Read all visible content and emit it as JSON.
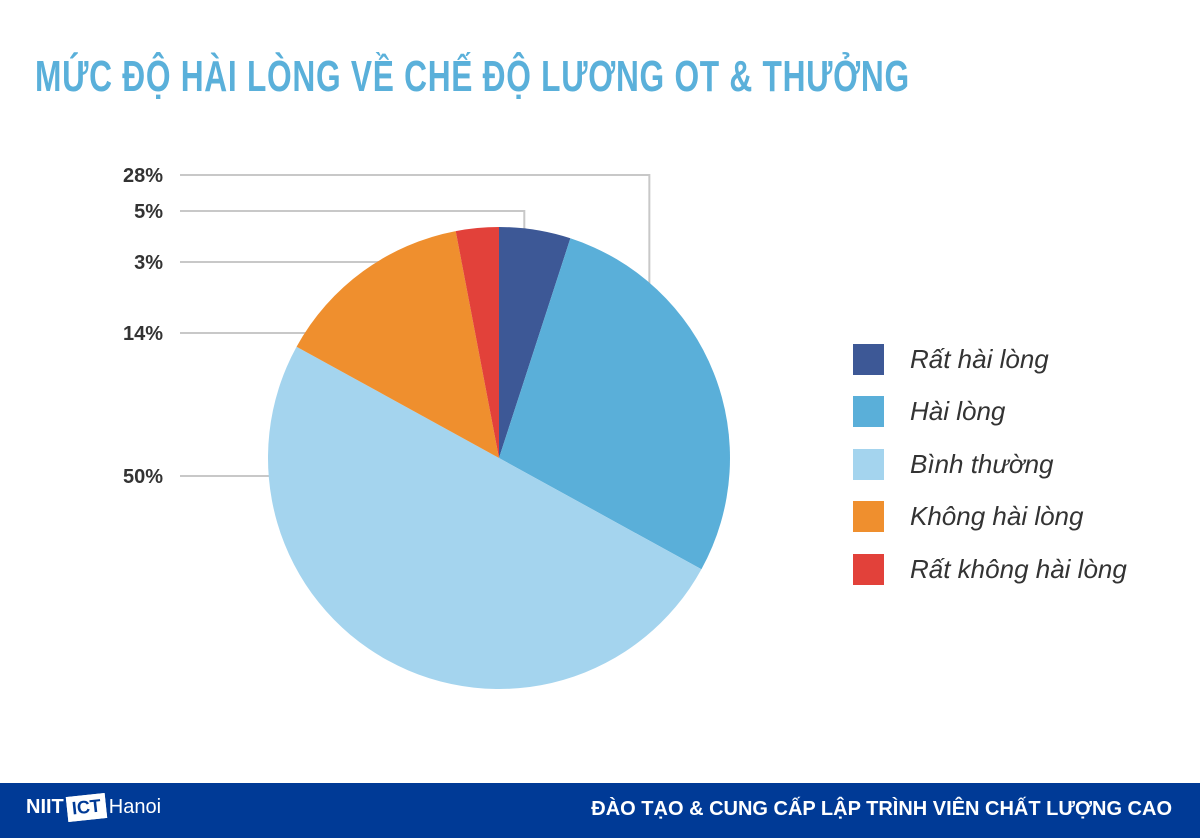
{
  "chart_data": {
    "type": "pie",
    "title": "MỨC ĐỘ HÀI LÒNG VỀ CHẾ ĐỘ LƯƠNG OT & THƯỞNG",
    "slices": [
      {
        "label": "Rất hài lòng",
        "value": 5,
        "display": "5%",
        "color": "#3d5896"
      },
      {
        "label": "Hài lòng",
        "value": 28,
        "display": "28%",
        "color": "#5aafd9"
      },
      {
        "label": "Bình thường",
        "value": 50,
        "display": "50%",
        "color": "#a4d4ee"
      },
      {
        "label": "Không hài lòng",
        "value": 14,
        "display": "14%",
        "color": "#ef8f2e"
      },
      {
        "label": "Rất không hài lòng",
        "value": 3,
        "display": "3%",
        "color": "#e2413a"
      }
    ],
    "legend_position": "right"
  },
  "footer": {
    "logo_text": [
      "NIIT",
      "ICT",
      "Hanoi"
    ],
    "tagline": "ĐÀO TẠO & CUNG CẤP LẬP TRÌNH VIÊN CHẤT LƯỢNG CAO",
    "background": "#003a96"
  }
}
